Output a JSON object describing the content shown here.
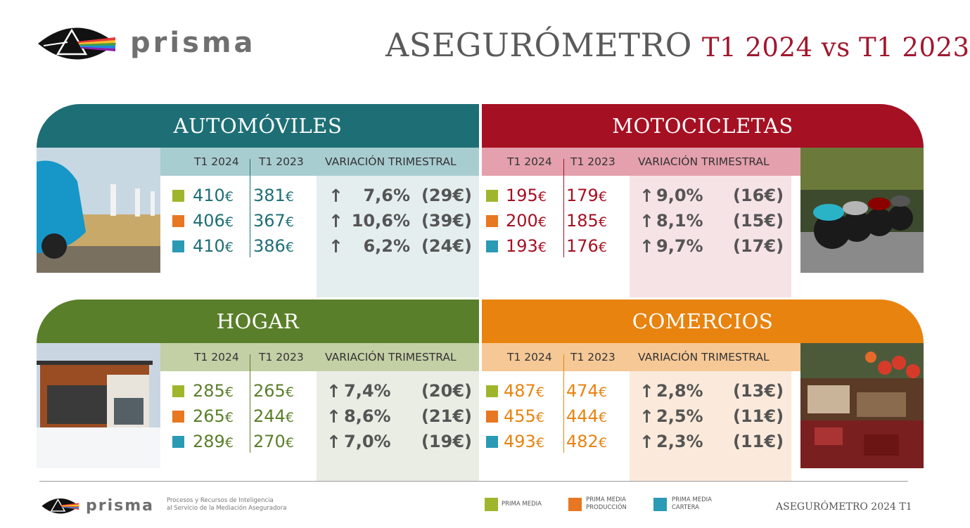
{
  "header": {
    "brand": "prisma",
    "title": "ASEGURÓMETRO",
    "subtitle": "T1 2024 vs T1 2023"
  },
  "column_headers": {
    "t1_2024": "T1 2024",
    "t1_2023": "T1 2023",
    "variation": "VARIACIÓN TRIMESTRAL"
  },
  "currency": "€",
  "arrow": "↑",
  "colors": {
    "prima_media": "#9fb62c",
    "prima_produccion": "#e87722",
    "prima_cartera": "#2a9ab5",
    "automoviles": "#1e6f75",
    "motocicletas": "#a51022",
    "hogar": "#5a7f2a",
    "comercios": "#e8830f",
    "title_accent": "#a0182e"
  },
  "sections": {
    "automoviles": {
      "title": "AUTOMÓVILES",
      "rows": [
        {
          "t1_2024": "410",
          "t1_2023": "381",
          "pct": "7,6%",
          "amt": "(29€)"
        },
        {
          "t1_2024": "406",
          "t1_2023": "367",
          "pct": "10,6%",
          "amt": "(39€)"
        },
        {
          "t1_2024": "410",
          "t1_2023": "386",
          "pct": "6,2%",
          "amt": "(24€)"
        }
      ]
    },
    "motocicletas": {
      "title": "MOTOCICLETAS",
      "rows": [
        {
          "t1_2024": "195",
          "t1_2023": "179",
          "pct": "9,0%",
          "amt": "(16€)"
        },
        {
          "t1_2024": "200",
          "t1_2023": "185",
          "pct": "8,1%",
          "amt": "(15€)"
        },
        {
          "t1_2024": "193",
          "t1_2023": "176",
          "pct": "9,7%",
          "amt": "(17€)"
        }
      ]
    },
    "hogar": {
      "title": "HOGAR",
      "rows": [
        {
          "t1_2024": "285",
          "t1_2023": "265",
          "pct": "7,4%",
          "amt": "(20€)"
        },
        {
          "t1_2024": "265",
          "t1_2023": "244",
          "pct": "8,6%",
          "amt": "(21€)"
        },
        {
          "t1_2024": "289",
          "t1_2023": "270",
          "pct": "7,0%",
          "amt": "(19€)"
        }
      ]
    },
    "comercios": {
      "title": "COMERCIOS",
      "rows": [
        {
          "t1_2024": "487",
          "t1_2023": "474",
          "pct": "2,8%",
          "amt": "(13€)"
        },
        {
          "t1_2024": "455",
          "t1_2023": "444",
          "pct": "2,5%",
          "amt": "(11€)"
        },
        {
          "t1_2024": "493",
          "t1_2023": "482",
          "pct": "2,3%",
          "amt": "(11€)"
        }
      ]
    }
  },
  "footer": {
    "brand": "prisma",
    "tagline_line1": "Procesos y Recursos de Inteligencia",
    "tagline_line2": "al Servicio de la Mediación Aseguradora",
    "legend": [
      {
        "line1": "PRIMA MEDIA",
        "line2": ""
      },
      {
        "line1": "PRIMA MEDIA",
        "line2": "PRODUCCIÓN"
      },
      {
        "line1": "PRIMA MEDIA",
        "line2": "CARTERA"
      }
    ],
    "right_text": "ASEGURÓMETRO 2024 T1"
  }
}
